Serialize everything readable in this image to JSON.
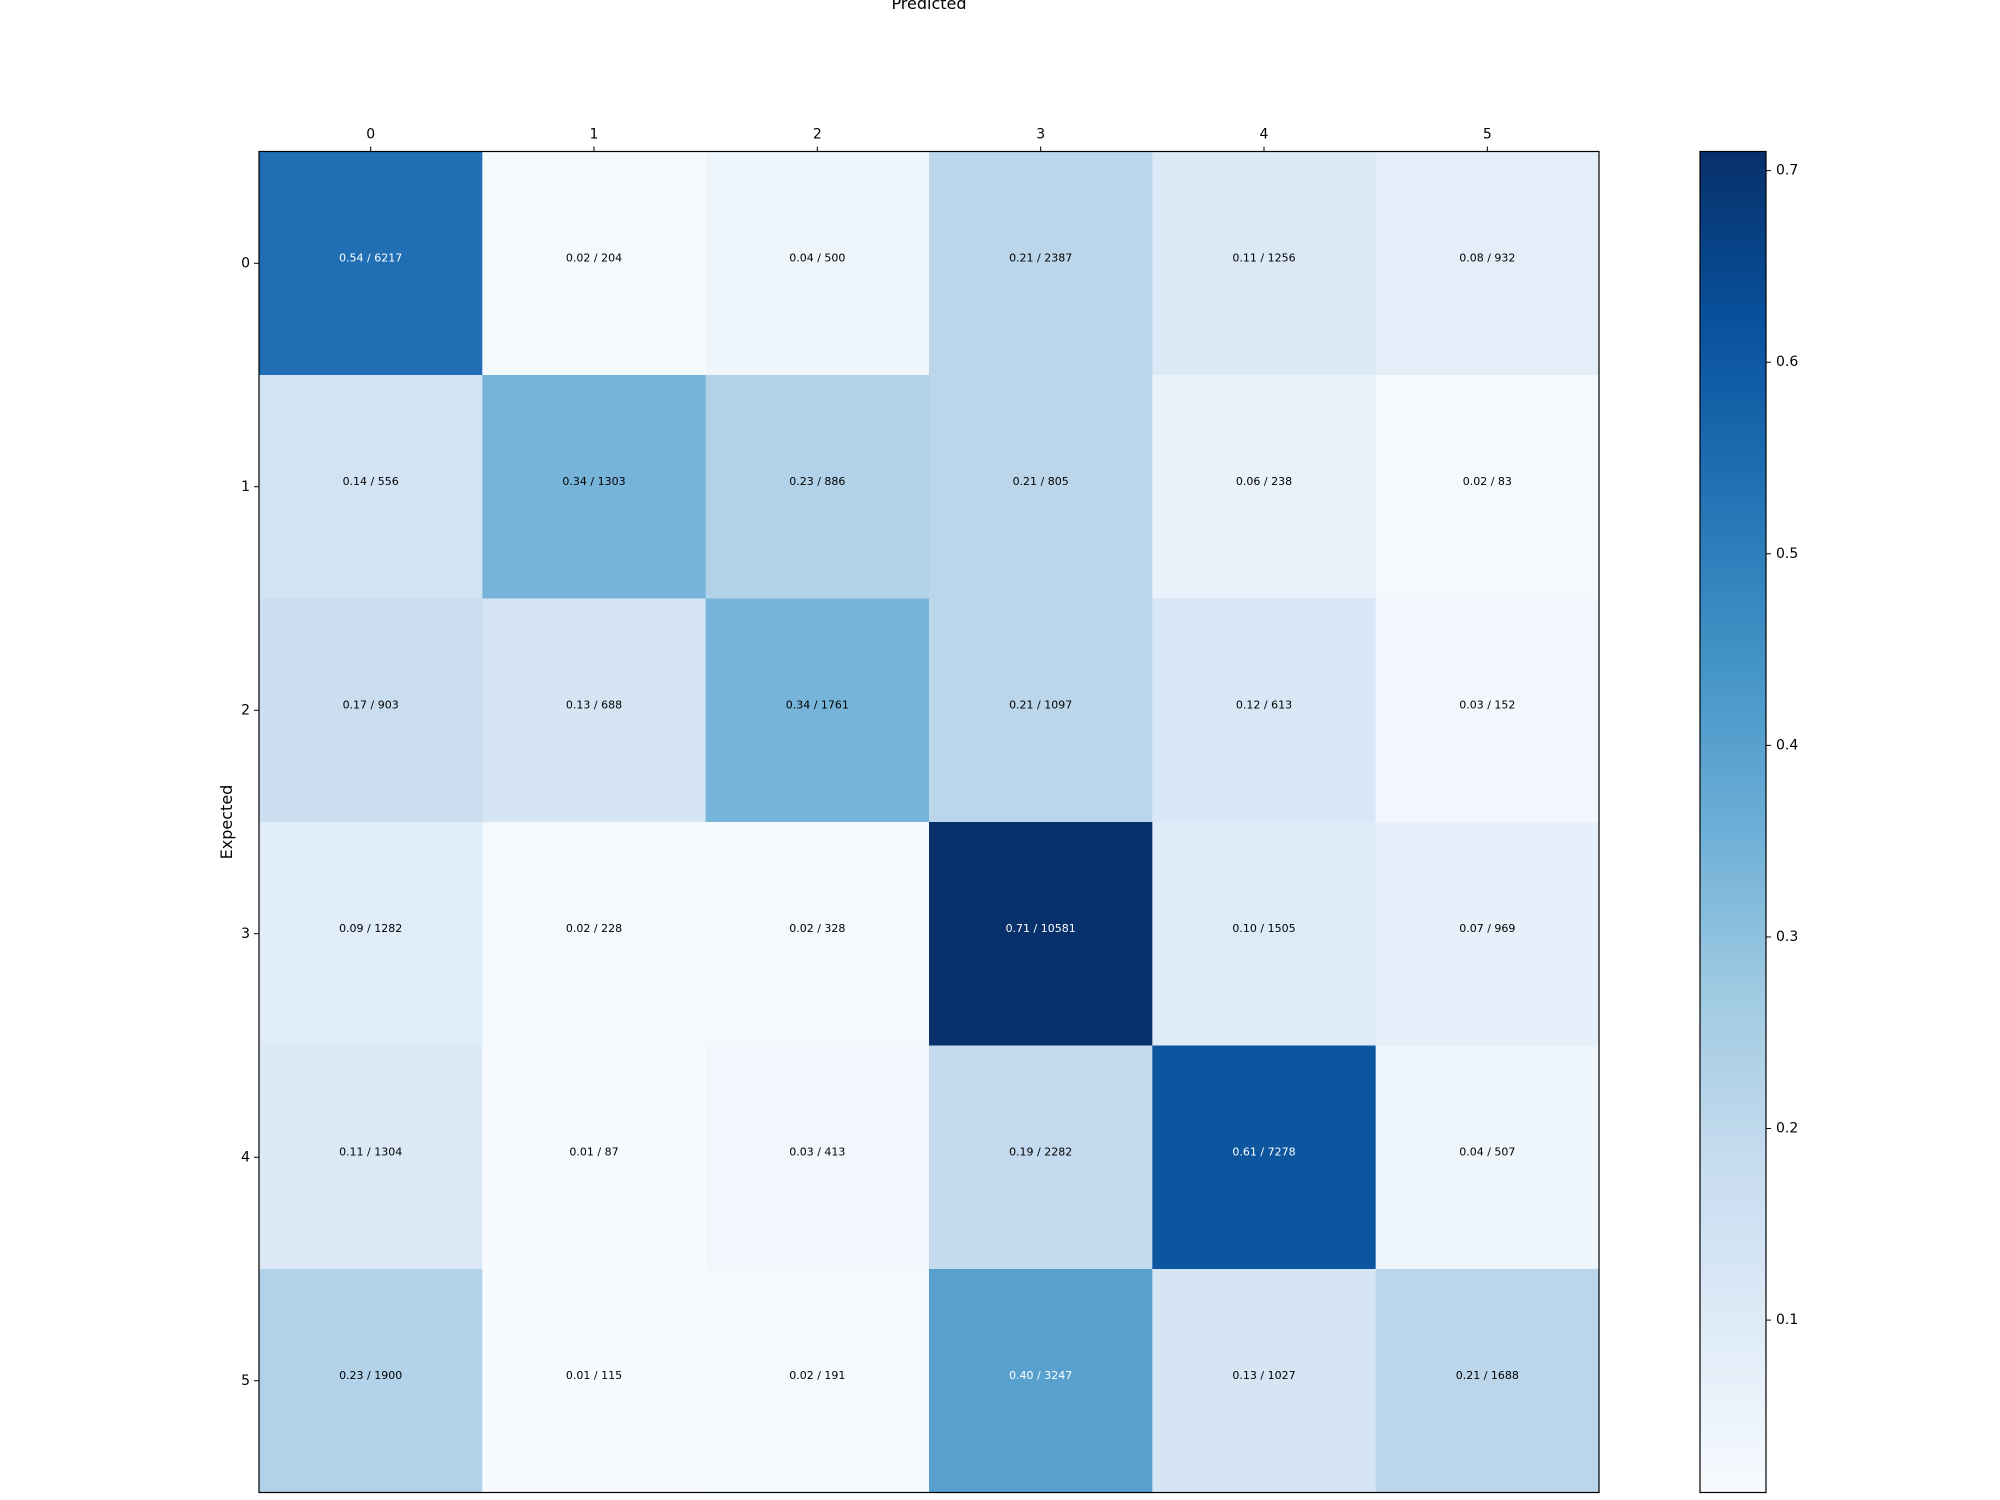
{
  "chart_data": {
    "type": "heatmap",
    "xlabel": "Predicted",
    "ylabel": "Expected",
    "x_categories": [
      "0",
      "1",
      "2",
      "3",
      "4",
      "5"
    ],
    "y_categories": [
      "0",
      "1",
      "2",
      "3",
      "4",
      "5"
    ],
    "values": [
      [
        0.54,
        0.02,
        0.04,
        0.21,
        0.11,
        0.08
      ],
      [
        0.14,
        0.34,
        0.23,
        0.21,
        0.06,
        0.02
      ],
      [
        0.17,
        0.13,
        0.34,
        0.21,
        0.12,
        0.03
      ],
      [
        0.09,
        0.02,
        0.02,
        0.71,
        0.1,
        0.07
      ],
      [
        0.11,
        0.01,
        0.03,
        0.19,
        0.61,
        0.04
      ],
      [
        0.23,
        0.01,
        0.02,
        0.4,
        0.13,
        0.21
      ]
    ],
    "counts": [
      [
        6217,
        204,
        500,
        2387,
        1256,
        932
      ],
      [
        556,
        1303,
        886,
        805,
        238,
        83
      ],
      [
        903,
        688,
        1761,
        1097,
        613,
        152
      ],
      [
        1282,
        228,
        328,
        10581,
        1505,
        969
      ],
      [
        1304,
        87,
        413,
        2282,
        7278,
        507
      ],
      [
        1900,
        115,
        191,
        3247,
        1027,
        1688
      ]
    ],
    "cell_labels": [
      [
        "0.54 / 6217",
        "0.02 / 204",
        "0.04 / 500",
        "0.21 / 2387",
        "0.11 / 1256",
        "0.08 / 932"
      ],
      [
        "0.14 / 556",
        "0.34 / 1303",
        "0.23 / 886",
        "0.21 / 805",
        "0.06 / 238",
        "0.02 / 83"
      ],
      [
        "0.17 / 903",
        "0.13 / 688",
        "0.34 / 1761",
        "0.21 / 1097",
        "0.12 / 613",
        "0.03 / 152"
      ],
      [
        "0.09 / 1282",
        "0.02 / 228",
        "0.02 / 328",
        "0.71 / 10581",
        "0.10 / 1505",
        "0.07 / 969"
      ],
      [
        "0.11 / 1304",
        "0.01 / 87",
        "0.03 / 413",
        "0.19 / 2282",
        "0.61 / 7278",
        "0.04 / 507"
      ],
      [
        "0.23 / 1900",
        "0.01 / 115",
        "0.02 / 191",
        "0.40 / 3247",
        "0.13 / 1027",
        "0.21 / 1688"
      ]
    ],
    "colorbar": {
      "colormap": "Blues",
      "vmin": 0.01,
      "vmax": 0.71,
      "ticks": [
        0.1,
        0.2,
        0.3,
        0.4,
        0.5,
        0.6,
        0.7
      ],
      "tick_labels": [
        "0.1",
        "0.2",
        "0.3",
        "0.4",
        "0.5",
        "0.6",
        "0.7"
      ]
    },
    "x_axis_position": "top",
    "grid": false
  }
}
